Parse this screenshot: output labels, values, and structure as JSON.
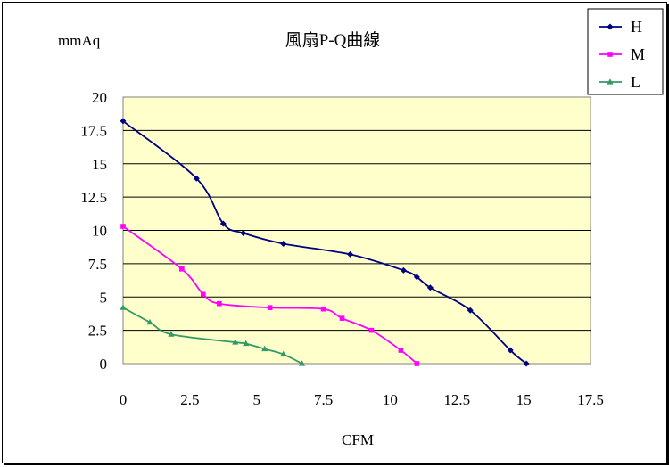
{
  "chart_data": {
    "type": "line",
    "title": "風扇P-Q曲線",
    "xlabel": "CFM",
    "ylabel": "mmAq",
    "xlim": [
      0,
      17.5
    ],
    "ylim": [
      0,
      20
    ],
    "xticks": [
      0,
      2.5,
      5,
      7.5,
      10,
      12.5,
      15,
      17.5
    ],
    "xtick_labels": [
      "0",
      "2.5",
      "5",
      "7.5",
      "10",
      "12.5",
      "15",
      "17.5"
    ],
    "yticks": [
      0,
      2.5,
      5,
      7.5,
      10,
      12.5,
      15,
      17.5,
      20
    ],
    "ytick_labels": [
      "0",
      "2.5",
      "5",
      "7.5",
      "10",
      "12.5",
      "15",
      "17.5",
      "20"
    ],
    "grid": "horizontal",
    "legend_position": "top-right",
    "plot_background": "#ffffcc",
    "series": [
      {
        "name": "H",
        "color": "#000080",
        "marker": "diamond",
        "points": [
          [
            0,
            18.2
          ],
          [
            2.75,
            13.9
          ],
          [
            3.75,
            10.5
          ],
          [
            4.5,
            9.8
          ],
          [
            6,
            9.0
          ],
          [
            8.5,
            8.2
          ],
          [
            10.5,
            7.0
          ],
          [
            11,
            6.5
          ],
          [
            11.5,
            5.7
          ],
          [
            13,
            4.0
          ],
          [
            14.5,
            1.0
          ],
          [
            15.1,
            0
          ]
        ]
      },
      {
        "name": "M",
        "color": "#ff00ff",
        "marker": "square",
        "points": [
          [
            0,
            10.3
          ],
          [
            2.2,
            7.1
          ],
          [
            3,
            5.2
          ],
          [
            3.6,
            4.5
          ],
          [
            5.5,
            4.2
          ],
          [
            7.5,
            4.1
          ],
          [
            8.2,
            3.4
          ],
          [
            9.3,
            2.5
          ],
          [
            10.4,
            1.0
          ],
          [
            11,
            0
          ]
        ]
      },
      {
        "name": "L",
        "color": "#339966",
        "marker": "triangle",
        "points": [
          [
            0,
            4.2
          ],
          [
            1,
            3.1
          ],
          [
            1.8,
            2.2
          ],
          [
            4.2,
            1.6
          ],
          [
            4.6,
            1.5
          ],
          [
            5.3,
            1.1
          ],
          [
            6.0,
            0.7
          ],
          [
            6.7,
            0
          ]
        ]
      }
    ]
  }
}
